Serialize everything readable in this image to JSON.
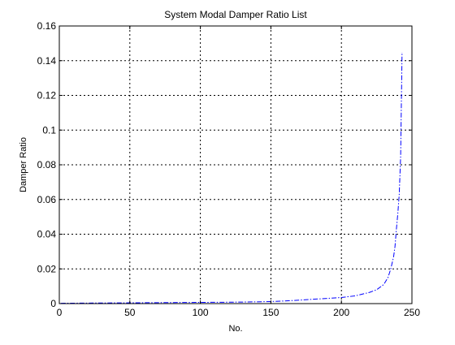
{
  "chart_data": {
    "type": "line",
    "title": "System Modal Damper Ratio List",
    "xlabel": "No.",
    "ylabel": "Damper Ratio",
    "xlim": [
      0,
      250
    ],
    "ylim": [
      0,
      0.16
    ],
    "xticks": [
      0,
      50,
      100,
      150,
      200,
      250
    ],
    "yticks": [
      0,
      0.02,
      0.04,
      0.06,
      0.08,
      0.1,
      0.12,
      0.14,
      0.16
    ],
    "xtick_labels": [
      "0",
      "50",
      "100",
      "150",
      "200",
      "250"
    ],
    "ytick_labels": [
      "0",
      "0.02",
      "0.04",
      "0.06",
      "0.08",
      "0.1",
      "0.12",
      "0.14",
      "0.16"
    ],
    "grid": true,
    "line_style": "dash-dot",
    "series": [
      {
        "color": "#0000ff",
        "x": [
          1,
          20,
          40,
          60,
          80,
          100,
          120,
          140,
          150,
          160,
          170,
          180,
          190,
          200,
          210,
          220,
          225,
          230,
          233,
          235,
          237,
          238,
          239,
          240,
          241,
          242,
          243
        ],
        "y": [
          0.0002,
          0.0003,
          0.0004,
          0.0005,
          0.0006,
          0.0007,
          0.0008,
          0.001,
          0.0012,
          0.0015,
          0.002,
          0.0025,
          0.003,
          0.0035,
          0.0045,
          0.0065,
          0.008,
          0.011,
          0.015,
          0.02,
          0.027,
          0.033,
          0.043,
          0.052,
          0.063,
          0.085,
          0.145
        ]
      }
    ]
  }
}
